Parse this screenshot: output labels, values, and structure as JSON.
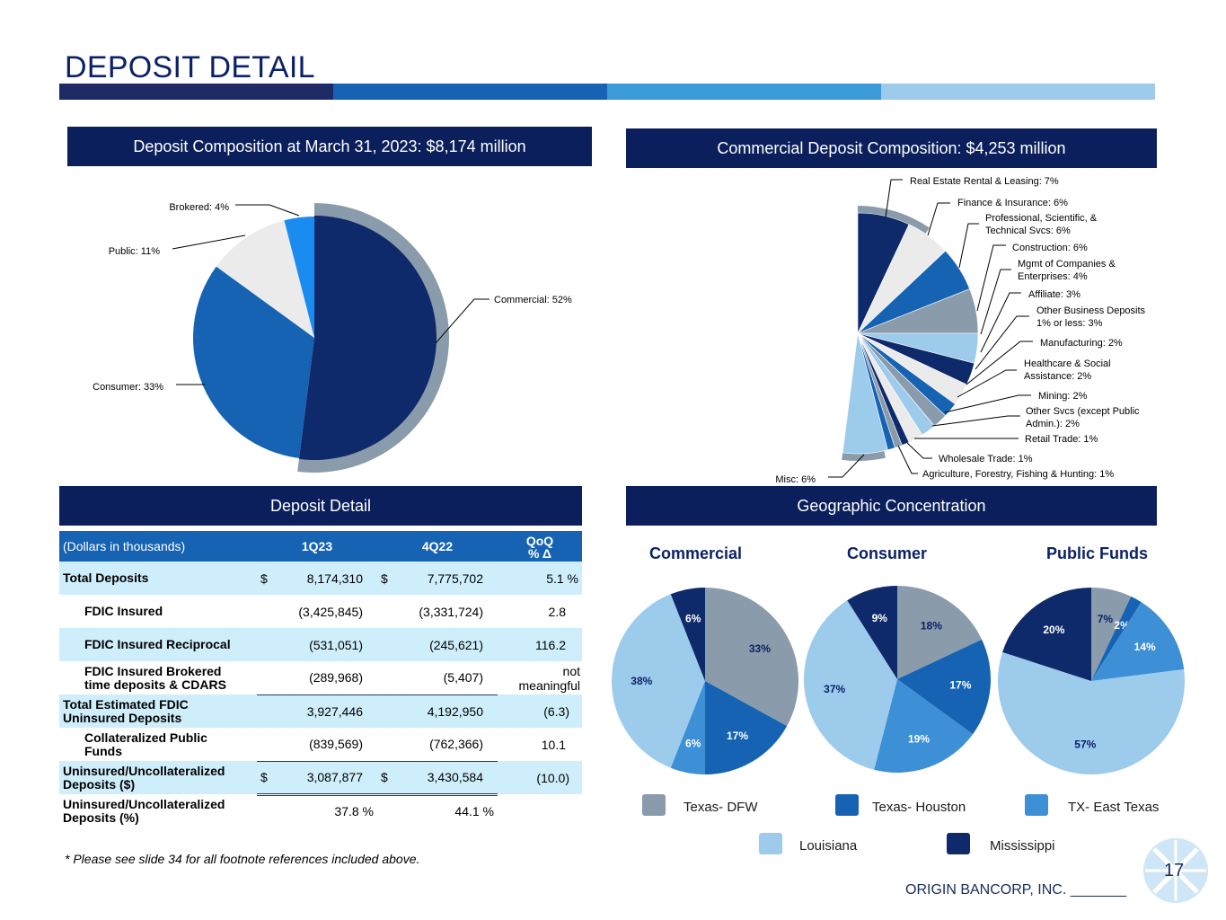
{
  "slide": {
    "title": "DEPOSIT DETAIL",
    "footnote": "* Please see slide 34 for all footnote references included above.",
    "brand": "ORIGIN BANCORP, INC. _______",
    "page_number": "17"
  },
  "colors": {
    "navy": "#0b1f5c",
    "darkblue": "#0f2a6b",
    "mediumblue": "#1663b3",
    "skyblue": "#3d8fd6",
    "lightblue": "#9ccbec",
    "gray": "#8a9bab",
    "lightgray": "#ebebeb",
    "brightblue": "#1a8cf0"
  },
  "headers": {
    "deposit_composition": "Deposit Composition at March 31, 2023: $8,174 million",
    "commercial_composition": "Commercial Deposit Composition: $4,253 million",
    "deposit_detail": "Deposit Detail",
    "geographic": "Geographic Concentration"
  },
  "chart_data": [
    {
      "type": "pie",
      "title": "Deposit Composition at March 31, 2023: $8,174 million",
      "slices": [
        {
          "label": "Commercial: 52%",
          "value": 52,
          "color": "#0f2a6b"
        },
        {
          "label": "Consumer: 33%",
          "value": 33,
          "color": "#1663b3"
        },
        {
          "label": "Public: 11%",
          "value": 11,
          "color": "#ebebeb"
        },
        {
          "label": "Brokered: 4%",
          "value": 4,
          "color": "#1a8cf0"
        }
      ]
    },
    {
      "type": "pie",
      "title": "Commercial Deposit Composition: $4,253 million",
      "slices": [
        {
          "label": "Real Estate Rental & Leasing: 7%",
          "value": 7,
          "color": "#0f2a6b"
        },
        {
          "label": "Finance & Insurance: 6%",
          "value": 6,
          "color": "#ebebeb"
        },
        {
          "label": "Professional, Scientific, & Technical Svcs: 6%",
          "value": 6,
          "color": "#1663b3"
        },
        {
          "label": "Construction: 6%",
          "value": 6,
          "color": "#8a9bab"
        },
        {
          "label": "Mgmt of Companies & Enterprises: 4%",
          "value": 4,
          "color": "#9ccbec"
        },
        {
          "label": "Affiliate: 3%",
          "value": 3,
          "color": "#0f2a6b"
        },
        {
          "label": "Other Business Deposits 1% or less: 3%",
          "value": 3,
          "color": "#ebebeb"
        },
        {
          "label": "Manufacturing: 2%",
          "value": 2,
          "color": "#1663b3"
        },
        {
          "label": "Healthcare & Social Assistance: 2%",
          "value": 2,
          "color": "#8a9bab"
        },
        {
          "label": "Mining: 2%",
          "value": 2,
          "color": "#9ccbec"
        },
        {
          "label": "Other Svcs (except Public Admin.): 2%",
          "value": 2,
          "color": "#ebebeb"
        },
        {
          "label": "Retail Trade: 1%",
          "value": 1,
          "color": "#0f2a6b"
        },
        {
          "label": "Wholesale Trade: 1%",
          "value": 1,
          "color": "#8a9bab"
        },
        {
          "label": "Agriculture, Forestry, Fishing & Hunting: 1%",
          "value": 1,
          "color": "#1663b3"
        },
        {
          "label": "Misc: 6%",
          "value": 6,
          "color": "#9ccbec"
        }
      ]
    },
    {
      "type": "pie",
      "title": "Commercial",
      "slices": [
        {
          "label": "33%",
          "value": 33,
          "color": "#8a9bab"
        },
        {
          "label": "17%",
          "value": 17,
          "color": "#1663b3"
        },
        {
          "label": "6%",
          "value": 6,
          "color": "#3d8fd6"
        },
        {
          "label": "38%",
          "value": 38,
          "color": "#9ccbec"
        },
        {
          "label": "6%",
          "value": 6,
          "color": "#0f2a6b"
        }
      ]
    },
    {
      "type": "pie",
      "title": "Consumer",
      "slices": [
        {
          "label": "18%",
          "value": 18,
          "color": "#8a9bab"
        },
        {
          "label": "17%",
          "value": 17,
          "color": "#1663b3"
        },
        {
          "label": "19%",
          "value": 19,
          "color": "#3d8fd6"
        },
        {
          "label": "37%",
          "value": 37,
          "color": "#9ccbec"
        },
        {
          "label": "9%",
          "value": 9,
          "color": "#0f2a6b"
        }
      ]
    },
    {
      "type": "pie",
      "title": "Public Funds",
      "slices": [
        {
          "label": "7%",
          "value": 7,
          "color": "#8a9bab"
        },
        {
          "label": "2%",
          "value": 2,
          "color": "#1663b3"
        },
        {
          "label": "14%",
          "value": 14,
          "color": "#3d8fd6"
        },
        {
          "label": "57%",
          "value": 57,
          "color": "#9ccbec"
        },
        {
          "label": "20%",
          "value": 20,
          "color": "#0f2a6b"
        }
      ]
    }
  ],
  "geo_legend": [
    {
      "label": "Texas- DFW",
      "color": "#8a9bab"
    },
    {
      "label": "Texas- Houston",
      "color": "#1663b3"
    },
    {
      "label": "TX- East Texas",
      "color": "#3d8fd6"
    },
    {
      "label": "Louisiana",
      "color": "#9ccbec"
    },
    {
      "label": "Mississippi",
      "color": "#0f2a6b"
    }
  ],
  "table": {
    "columns": {
      "label": "(Dollars in thousands)",
      "c1": "1Q23",
      "c2": "4Q22",
      "c3a": "QoQ",
      "c3b": "% Δ"
    },
    "rows": [
      {
        "l1": "Total Deposits",
        "l2": "",
        "d1": "$",
        "v1": "8,174,310",
        "d2": "$",
        "v2": "7,775,702",
        "p": "5.1 %"
      },
      {
        "l1": "FDIC Insured",
        "l2": "",
        "d1": "",
        "v1": "(3,425,845)",
        "d2": "",
        "v2": "(3,331,724)",
        "p": "2.8"
      },
      {
        "l1": "FDIC Insured Reciprocal",
        "l2": "",
        "d1": "",
        "v1": "(531,051)",
        "d2": "",
        "v2": "(245,621)",
        "p": "116.2"
      },
      {
        "l1": "FDIC Insured Brokered",
        "l2": "time deposits & CDARS",
        "d1": "",
        "v1": "(289,968)",
        "d2": "",
        "v2": "(5,407)",
        "p": "not meaningful"
      },
      {
        "l1": "Total Estimated FDIC",
        "l2": "Uninsured Deposits",
        "d1": "",
        "v1": "3,927,446",
        "d2": "",
        "v2": "4,192,950",
        "p": "(6.3)"
      },
      {
        "l1": "Collateralized Public",
        "l2": "Funds",
        "d1": "",
        "v1": "(839,569)",
        "d2": "",
        "v2": "(762,366)",
        "p": "10.1"
      },
      {
        "l1": "Uninsured/Uncollateralized",
        "l2": "Deposits ($)",
        "d1": "$",
        "v1": "3,087,877",
        "d2": "$",
        "v2": "3,430,584",
        "p": "(10.0)"
      },
      {
        "l1": "Uninsured/Uncollateralized",
        "l2": "Deposits (%)",
        "d1": "",
        "v1": "37.8 %",
        "d2": "",
        "v2": "44.1 %",
        "p": ""
      }
    ]
  }
}
